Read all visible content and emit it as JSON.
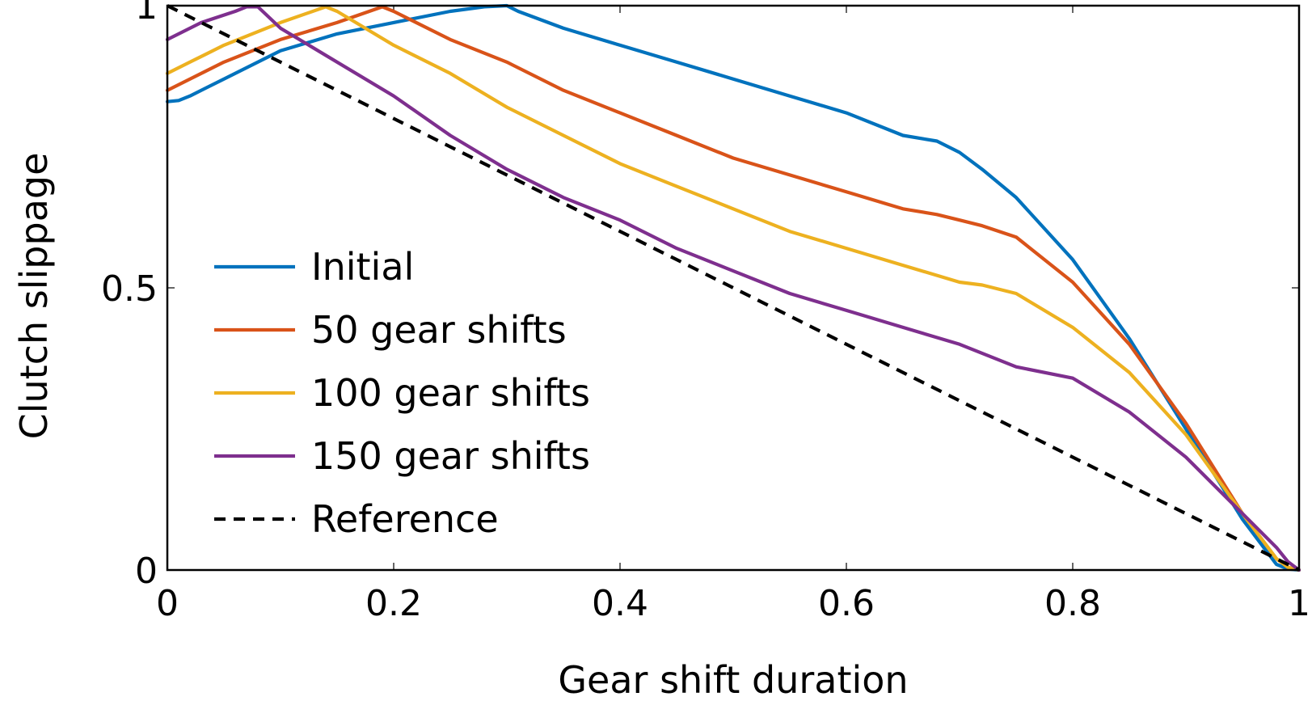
{
  "chart_data": {
    "type": "line",
    "xlabel": "Gear shift duration",
    "ylabel": "Clutch slippage",
    "xlim": [
      0,
      1
    ],
    "ylim": [
      0,
      1
    ],
    "xticks": [
      0,
      0.2,
      0.4,
      0.6,
      0.8,
      1
    ],
    "xtick_labels": [
      "0",
      "0.2",
      "0.4",
      "0.6",
      "0.8",
      "1"
    ],
    "yticks": [
      0,
      0.5,
      1
    ],
    "ytick_labels": [
      "0",
      "0.5",
      "1"
    ],
    "grid": false,
    "legend_position": "lower-left",
    "series": [
      {
        "name": "Initial",
        "color": "#0072BD",
        "dash": "solid",
        "x": [
          0,
          0.01,
          0.02,
          0.05,
          0.1,
          0.15,
          0.2,
          0.25,
          0.28,
          0.3,
          0.31,
          0.35,
          0.4,
          0.45,
          0.5,
          0.55,
          0.6,
          0.65,
          0.68,
          0.7,
          0.72,
          0.75,
          0.8,
          0.85,
          0.9,
          0.95,
          0.98,
          0.99,
          1
        ],
        "y": [
          0.83,
          0.832,
          0.84,
          0.87,
          0.92,
          0.95,
          0.97,
          0.99,
          0.998,
          1.0,
          0.99,
          0.96,
          0.93,
          0.9,
          0.87,
          0.84,
          0.81,
          0.77,
          0.76,
          0.74,
          0.71,
          0.66,
          0.55,
          0.41,
          0.25,
          0.09,
          0.01,
          0.002,
          0
        ]
      },
      {
        "name": "50 gear shifts",
        "color": "#D95319",
        "dash": "solid",
        "x": [
          0,
          0.02,
          0.05,
          0.1,
          0.15,
          0.19,
          0.2,
          0.25,
          0.3,
          0.35,
          0.4,
          0.45,
          0.5,
          0.55,
          0.6,
          0.65,
          0.68,
          0.7,
          0.72,
          0.75,
          0.8,
          0.85,
          0.9,
          0.95,
          0.98,
          0.99,
          1
        ],
        "y": [
          0.85,
          0.87,
          0.9,
          0.94,
          0.97,
          0.998,
          0.99,
          0.94,
          0.9,
          0.85,
          0.81,
          0.77,
          0.73,
          0.7,
          0.67,
          0.64,
          0.63,
          0.62,
          0.61,
          0.59,
          0.51,
          0.4,
          0.26,
          0.1,
          0.02,
          0.005,
          0
        ]
      },
      {
        "name": "100 gear shifts",
        "color": "#EDB120",
        "dash": "solid",
        "x": [
          0,
          0.02,
          0.05,
          0.1,
          0.14,
          0.15,
          0.2,
          0.25,
          0.3,
          0.35,
          0.4,
          0.45,
          0.5,
          0.55,
          0.6,
          0.65,
          0.7,
          0.72,
          0.75,
          0.8,
          0.85,
          0.9,
          0.95,
          0.98,
          0.99,
          1
        ],
        "y": [
          0.88,
          0.9,
          0.93,
          0.97,
          0.998,
          0.99,
          0.93,
          0.88,
          0.82,
          0.77,
          0.72,
          0.68,
          0.64,
          0.6,
          0.57,
          0.54,
          0.51,
          0.505,
          0.49,
          0.43,
          0.35,
          0.24,
          0.1,
          0.02,
          0.005,
          0
        ]
      },
      {
        "name": "150 gear shifts",
        "color": "#7E2F8E",
        "dash": "solid",
        "x": [
          0,
          0.03,
          0.06,
          0.07,
          0.08,
          0.1,
          0.15,
          0.2,
          0.25,
          0.3,
          0.35,
          0.4,
          0.45,
          0.5,
          0.55,
          0.6,
          0.65,
          0.7,
          0.75,
          0.8,
          0.85,
          0.9,
          0.95,
          0.98,
          0.99,
          1
        ],
        "y": [
          0.94,
          0.97,
          0.99,
          0.998,
          0.998,
          0.96,
          0.9,
          0.84,
          0.77,
          0.71,
          0.66,
          0.62,
          0.57,
          0.53,
          0.49,
          0.46,
          0.43,
          0.4,
          0.36,
          0.34,
          0.28,
          0.2,
          0.1,
          0.04,
          0.015,
          0
        ]
      },
      {
        "name": "Reference",
        "color": "#000000",
        "dash": "dashed",
        "x": [
          0,
          1
        ],
        "y": [
          1,
          0
        ]
      }
    ]
  }
}
